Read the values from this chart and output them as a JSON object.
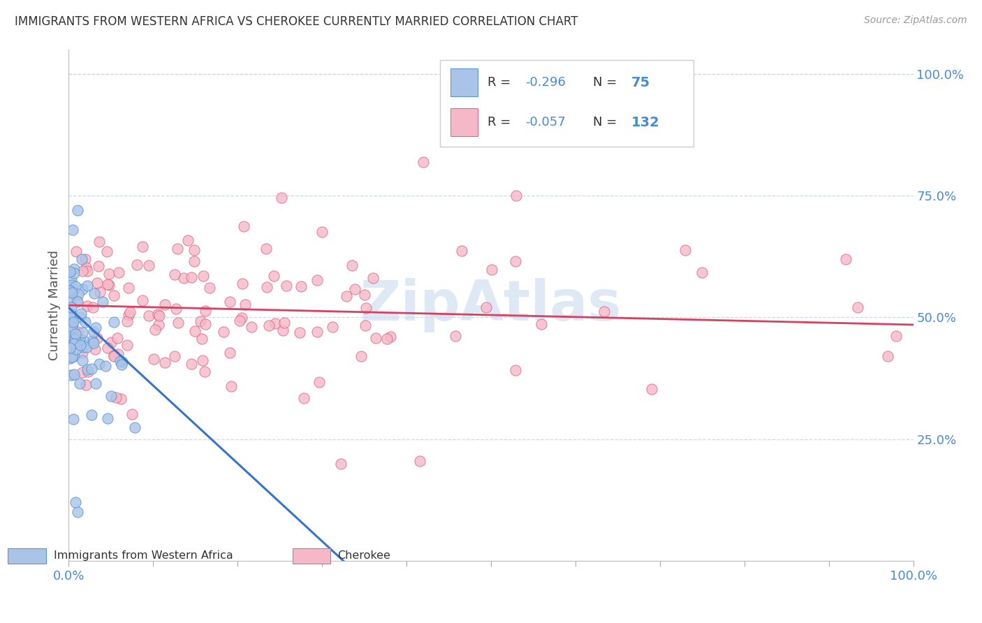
{
  "title": "IMMIGRANTS FROM WESTERN AFRICA VS CHEROKEE CURRENTLY MARRIED CORRELATION CHART",
  "source": "Source: ZipAtlas.com",
  "ylabel": "Currently Married",
  "ylabel_right_labels": [
    "100.0%",
    "75.0%",
    "50.0%",
    "25.0%"
  ],
  "ylabel_right_positions": [
    1.0,
    0.75,
    0.5,
    0.25
  ],
  "legend_label1": "Immigrants from Western Africa",
  "legend_label2": "Cherokee",
  "r1": "-0.296",
  "n1": "75",
  "r2": "-0.057",
  "n2": "132",
  "color_blue_fill": "#aac4e8",
  "color_blue_edge": "#5090d0",
  "color_pink_fill": "#f5b8c8",
  "color_pink_edge": "#e06080",
  "color_line_blue_solid": "#3575c8",
  "color_line_blue_dash": "#90b8e0",
  "color_line_pink": "#d84060",
  "background_color": "#ffffff",
  "grid_color": "#d0d8e8",
  "title_color": "#333333",
  "axis_label_color": "#4a8ad4",
  "watermark_color": "#c5d8f0",
  "watermark_text": "ZipAtlas",
  "seed": 42
}
